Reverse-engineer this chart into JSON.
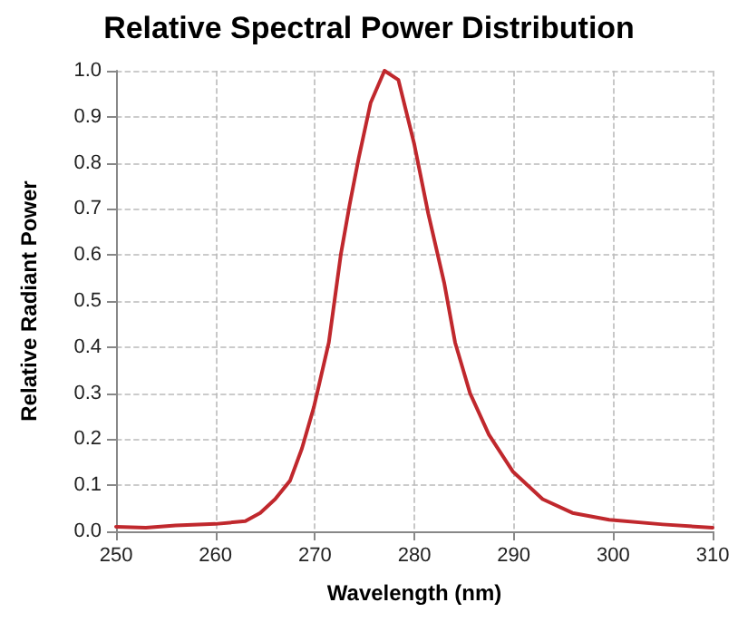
{
  "chart_data": {
    "type": "line",
    "title": "Relative Spectral Power Distribution",
    "xlabel": "Wavelength (nm)",
    "ylabel": "Relative Radiant Power",
    "x": [
      250,
      253,
      256,
      260,
      263,
      264.5,
      266,
      267.5,
      268.7,
      269.9,
      271.4,
      272.6,
      273.5,
      274.4,
      275.6,
      277,
      278.4,
      280,
      281.4,
      283,
      284.1,
      285.6,
      287.5,
      289.9,
      292.9,
      295.9,
      299.6,
      305,
      310
    ],
    "series": [
      {
        "color": "#c0282d",
        "values": [
          0.01,
          0.008,
          0.013,
          0.016,
          0.022,
          0.04,
          0.07,
          0.11,
          0.18,
          0.27,
          0.41,
          0.6,
          0.71,
          0.81,
          0.93,
          1.0,
          0.98,
          0.84,
          0.69,
          0.54,
          0.41,
          0.3,
          0.21,
          0.13,
          0.07,
          0.04,
          0.025,
          0.015,
          0.008
        ]
      }
    ],
    "xlim": [
      250,
      310
    ],
    "xticks": [
      250,
      260,
      270,
      280,
      290,
      300,
      310
    ],
    "ylim": [
      0,
      1
    ],
    "yticks": [
      {
        "value": 0,
        "label": "0.0"
      },
      0.1,
      0.2,
      0.3,
      0.4,
      0.5,
      0.6,
      0.7,
      0.8,
      0.9,
      {
        "value": 1,
        "label": "1.0"
      }
    ],
    "grid": true,
    "marker": "none",
    "line_style": "solid"
  }
}
